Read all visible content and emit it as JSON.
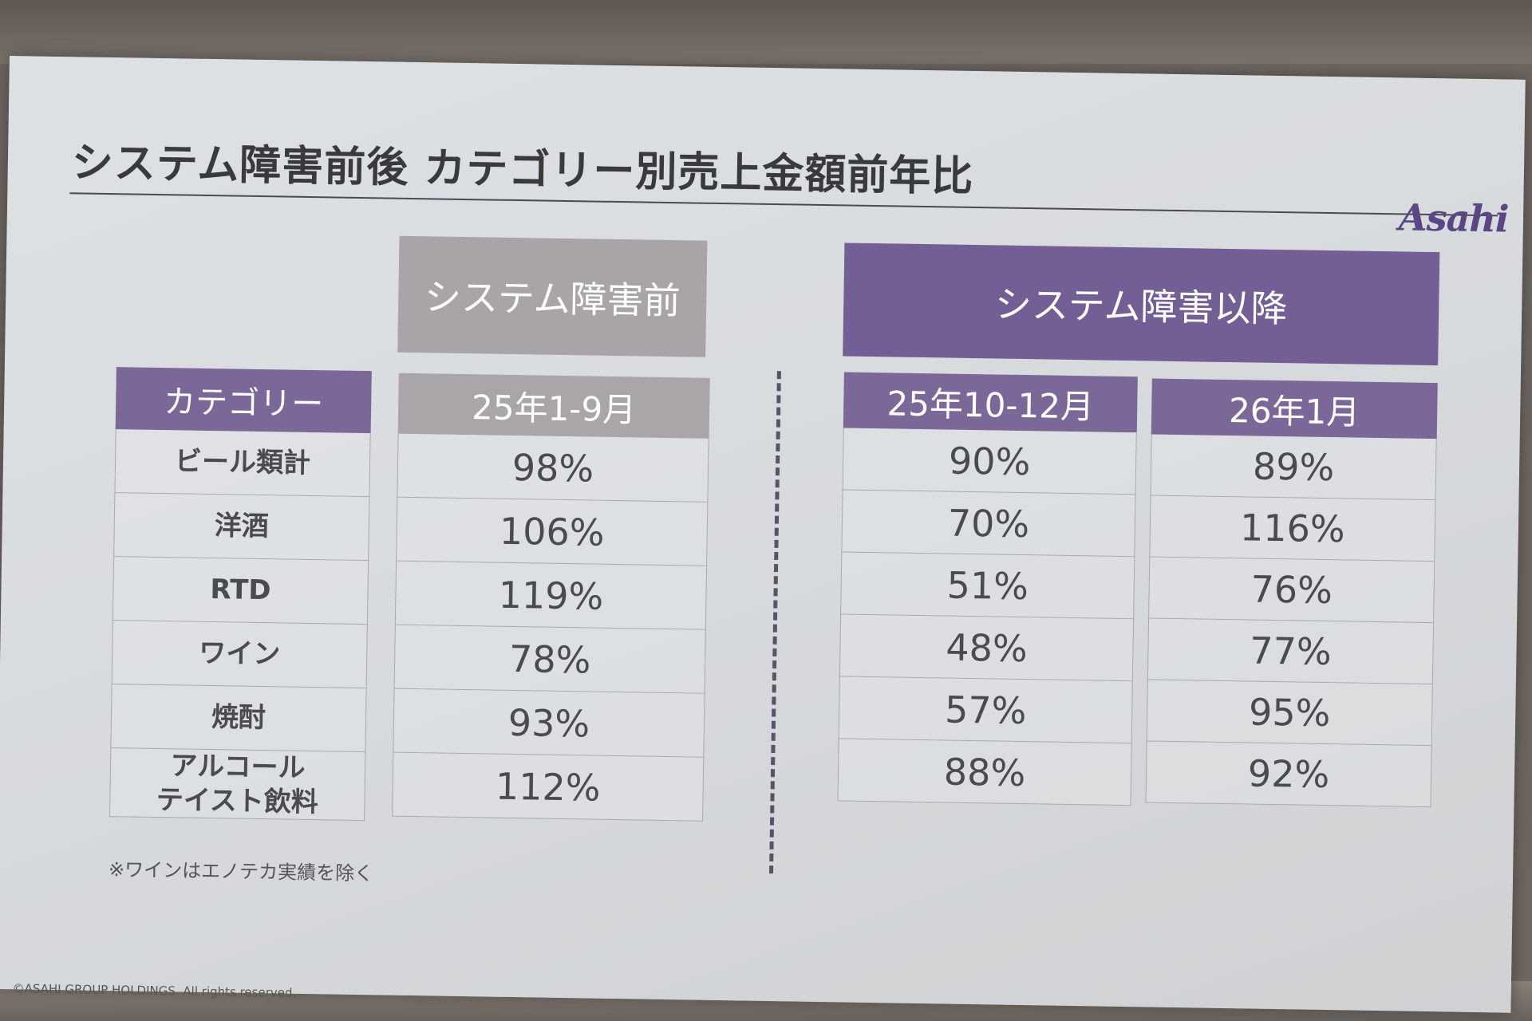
{
  "slide": {
    "title": "システム障害前後 カテゴリー別売上金額前年比",
    "logo": "Asahi",
    "note": "※ワインはエノテカ実績を除く",
    "copyright": "©ASAHI GROUP HOLDINGS. All rights reserved."
  },
  "groups": {
    "before": "システム障害前",
    "after": "システム障害以降"
  },
  "category_header": "カテゴリー",
  "categories": [
    "ビール類計",
    "洋酒",
    "RTD",
    "ワイン",
    "焼酎",
    "アルコール\nテイスト飲料"
  ],
  "periods": [
    {
      "label": "25年1-9月",
      "values": [
        "98%",
        "106%",
        "119%",
        "78%",
        "93%",
        "112%"
      ]
    },
    {
      "label": "25年10-12月",
      "values": [
        "90%",
        "70%",
        "51%",
        "48%",
        "57%",
        "88%"
      ]
    },
    {
      "label": "26年1月",
      "values": [
        "89%",
        "116%",
        "76%",
        "77%",
        "95%",
        "92%"
      ]
    }
  ],
  "colors": {
    "purple_header": "#7b6798",
    "gray_header": "#a9a5a9"
  }
}
